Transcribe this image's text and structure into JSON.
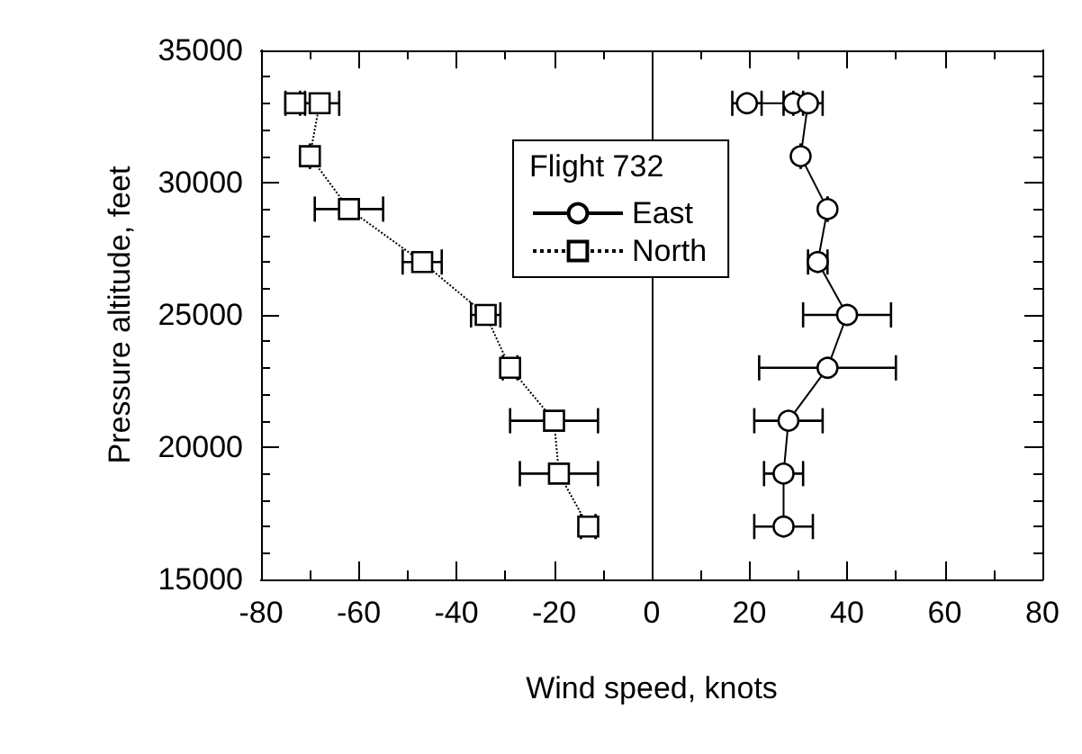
{
  "chart_data": {
    "type": "line",
    "xlabel": "Wind speed, knots",
    "ylabel": "Pressure altitude, feet",
    "legend_title": "Flight 732",
    "legend": "top",
    "grid": false,
    "xlim": [
      -80,
      80
    ],
    "xticks": [
      -80,
      -60,
      -40,
      -20,
      0,
      20,
      40,
      60,
      80
    ],
    "ylim": [
      15000,
      35000
    ],
    "yticks": [
      15000,
      20000,
      25000,
      30000,
      35000
    ],
    "ref_lines": [
      {
        "axis": "x",
        "value": 0,
        "color": "#000000",
        "line_style": "solid"
      }
    ],
    "series": [
      {
        "name": "East",
        "color": "#000000",
        "marker": "circle",
        "line_style": "solid",
        "x": [
          19.5,
          29,
          32,
          30.5,
          36,
          34,
          40,
          36,
          28,
          27,
          27
        ],
        "values": [
          33000,
          33000,
          33000,
          31000,
          29000,
          27000,
          25000,
          23000,
          21000,
          19000,
          17000
        ],
        "xerrors": [
          3,
          2,
          3,
          null,
          null,
          2,
          9,
          14,
          7,
          4,
          6
        ]
      },
      {
        "name": "North",
        "color": "#000000",
        "marker": "square",
        "line_style": "dotted",
        "x": [
          -73,
          -68,
          -70,
          -62,
          -47,
          -34,
          -29,
          -20,
          -19,
          -13
        ],
        "values": [
          33000,
          33000,
          31000,
          29000,
          27000,
          25000,
          23000,
          21000,
          19000,
          17000
        ],
        "xerrors": [
          2,
          4,
          null,
          7,
          4,
          3,
          1.5,
          9,
          8,
          1.5
        ]
      }
    ]
  }
}
